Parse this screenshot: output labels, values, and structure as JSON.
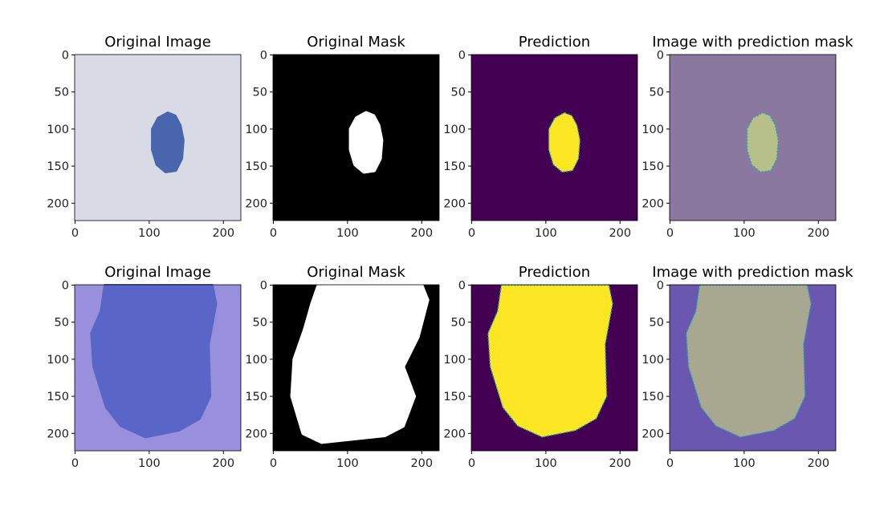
{
  "chart_data": [
    {
      "type": "image",
      "title": "Original Image",
      "row": 1,
      "xlim": [
        -0.5,
        223.5
      ],
      "ylim": [
        223.5,
        -0.5
      ],
      "xticks": [
        0,
        100,
        200
      ],
      "yticks": [
        0,
        50,
        100,
        150,
        200
      ],
      "colors": {
        "bg": "#d8dbe6",
        "lesion": "#3a5aa6"
      }
    },
    {
      "type": "image",
      "title": "Original Mask",
      "row": 1,
      "xlim": [
        -0.5,
        223.5
      ],
      "ylim": [
        223.5,
        -0.5
      ],
      "xticks": [
        0,
        100,
        200
      ],
      "yticks": [
        0,
        50,
        100,
        150,
        200
      ],
      "colors": {
        "bg": "#000000",
        "lesion": "#ffffff"
      }
    },
    {
      "type": "image",
      "title": "Prediction",
      "row": 1,
      "xlim": [
        -0.5,
        223.5
      ],
      "ylim": [
        223.5,
        -0.5
      ],
      "xticks": [
        0,
        100,
        200
      ],
      "yticks": [
        0,
        50,
        100,
        150,
        200
      ],
      "colors": {
        "bg": "#440154",
        "lesion": "#fde725"
      }
    },
    {
      "type": "image",
      "title": "Image with prediction mask",
      "row": 1,
      "xlim": [
        -0.5,
        223.5
      ],
      "ylim": [
        223.5,
        -0.5
      ],
      "xticks": [
        0,
        100,
        200
      ],
      "yticks": [
        0,
        50,
        100,
        150,
        200
      ],
      "colors": {
        "bg": "#8a789e",
        "lesion": "#b8c08a"
      }
    },
    {
      "type": "image",
      "title": "Original Image",
      "row": 2,
      "xlim": [
        -0.5,
        223.5
      ],
      "ylim": [
        223.5,
        -0.5
      ],
      "xticks": [
        0,
        100,
        200
      ],
      "yticks": [
        0,
        50,
        100,
        150,
        200
      ],
      "colors": {
        "bg": "#9890dc",
        "lesion": "#5362c6"
      }
    },
    {
      "type": "image",
      "title": "Original Mask",
      "row": 2,
      "xlim": [
        -0.5,
        223.5
      ],
      "ylim": [
        223.5,
        -0.5
      ],
      "xticks": [
        0,
        100,
        200
      ],
      "yticks": [
        0,
        50,
        100,
        150,
        200
      ],
      "colors": {
        "bg": "#000000",
        "lesion": "#ffffff"
      }
    },
    {
      "type": "image",
      "title": "Prediction",
      "row": 2,
      "xlim": [
        -0.5,
        223.5
      ],
      "ylim": [
        223.5,
        -0.5
      ],
      "xticks": [
        0,
        100,
        200
      ],
      "yticks": [
        0,
        50,
        100,
        150,
        200
      ],
      "colors": {
        "bg": "#440154",
        "lesion": "#fde725"
      }
    },
    {
      "type": "image",
      "title": "Image with prediction mask",
      "row": 2,
      "xlim": [
        -0.5,
        223.5
      ],
      "ylim": [
        223.5,
        -0.5
      ],
      "xticks": [
        0,
        100,
        200
      ],
      "yticks": [
        0,
        50,
        100,
        150,
        200
      ],
      "colors": {
        "bg": "#6a58b0",
        "lesion": "#a8a890"
      }
    }
  ]
}
